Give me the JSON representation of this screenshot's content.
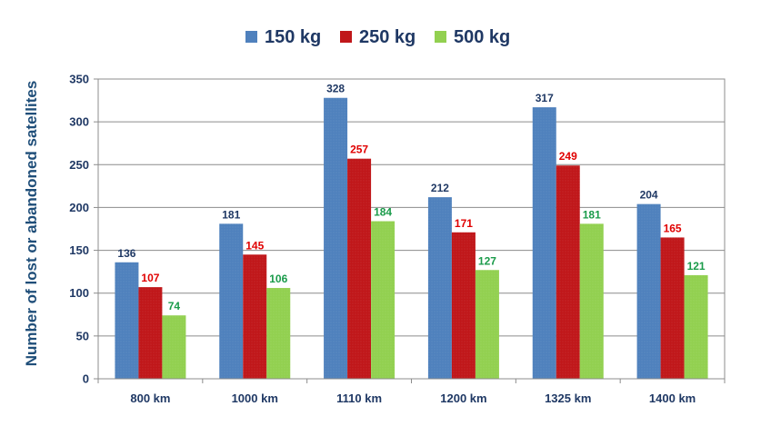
{
  "chart_data": {
    "type": "bar",
    "title": "",
    "xlabel": "",
    "ylabel": "Number of lost or abandoned satellites",
    "categories": [
      "800 km",
      "1000 km",
      "1110 km",
      "1200 km",
      "1325 km",
      "1400 km"
    ],
    "series": [
      {
        "name": "150 kg",
        "color": "#4f81bd",
        "label_color": "#1f3864",
        "values": [
          136,
          181,
          328,
          212,
          317,
          204
        ]
      },
      {
        "name": "250 kg",
        "color": "#c0171a",
        "label_color": "#e00000",
        "values": [
          107,
          145,
          257,
          171,
          249,
          165
        ]
      },
      {
        "name": "500 kg",
        "color": "#92d050",
        "label_color": "#1a9b4a",
        "values": [
          74,
          106,
          184,
          127,
          181,
          121
        ]
      }
    ],
    "ylim": [
      0,
      350
    ],
    "yticks": [
      0,
      50,
      100,
      150,
      200,
      250,
      300,
      350
    ],
    "grid": true,
    "legend": "top-center"
  }
}
